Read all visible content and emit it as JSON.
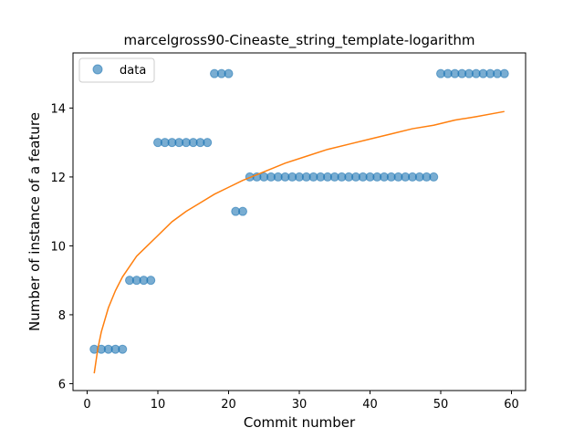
{
  "chart_data": {
    "type": "scatter",
    "title": "marcelgross90-Cineaste_string_template-logarithm",
    "xlabel": "Commit number",
    "ylabel": "Number of instance of a feature",
    "xlim": [
      -2,
      62
    ],
    "ylim": [
      5.8,
      15.6
    ],
    "xticks": [
      0,
      10,
      20,
      30,
      40,
      50,
      60
    ],
    "yticks": [
      6,
      8,
      10,
      12,
      14
    ],
    "legend": {
      "position": "top-left",
      "entries": [
        "data"
      ]
    },
    "grid": false,
    "colors": {
      "data": "#1f77b4",
      "fit": "#ff7f0e"
    },
    "series": [
      {
        "name": "data",
        "kind": "scatter",
        "x": [
          1,
          2,
          3,
          4,
          5,
          6,
          7,
          8,
          9,
          10,
          11,
          12,
          13,
          14,
          15,
          16,
          17,
          18,
          19,
          20,
          21,
          22,
          23,
          24,
          25,
          26,
          27,
          28,
          29,
          30,
          31,
          32,
          33,
          34,
          35,
          36,
          37,
          38,
          39,
          40,
          41,
          42,
          43,
          44,
          45,
          46,
          47,
          48,
          49,
          50,
          51,
          52,
          53,
          54,
          55,
          56,
          57,
          58,
          59
        ],
        "y": [
          7,
          7,
          7,
          7,
          7,
          9,
          9,
          9,
          9,
          13,
          13,
          13,
          13,
          13,
          13,
          13,
          13,
          15,
          15,
          15,
          11,
          11,
          12,
          12,
          12,
          12,
          12,
          12,
          12,
          12,
          12,
          12,
          12,
          12,
          12,
          12,
          12,
          12,
          12,
          12,
          12,
          12,
          12,
          12,
          12,
          12,
          12,
          12,
          12,
          15,
          15,
          15,
          15,
          15,
          15,
          15,
          15,
          15,
          15
        ]
      },
      {
        "kind": "line",
        "x": [
          1,
          1.5,
          2,
          3,
          4,
          5,
          6,
          7,
          8,
          10,
          12,
          14,
          16,
          18,
          20,
          22,
          25,
          28,
          31,
          34,
          37,
          40,
          43,
          46,
          49,
          52,
          55,
          59
        ],
        "y": [
          6.3,
          7.0,
          7.5,
          8.2,
          8.7,
          9.1,
          9.4,
          9.7,
          9.9,
          10.3,
          10.7,
          11.0,
          11.25,
          11.5,
          11.7,
          11.9,
          12.15,
          12.4,
          12.6,
          12.8,
          12.95,
          13.1,
          13.25,
          13.4,
          13.5,
          13.65,
          13.75,
          13.9
        ]
      }
    ]
  }
}
